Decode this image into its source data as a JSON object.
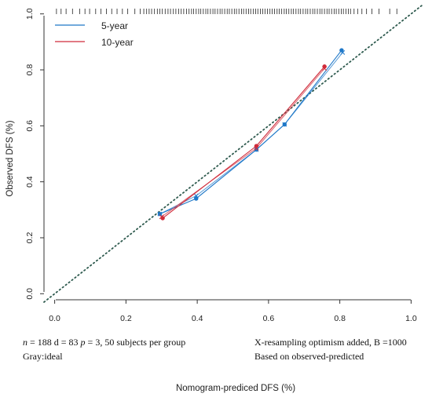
{
  "chart_data": {
    "type": "line",
    "xlabel": "Nomogram-prediced DFS (%)",
    "ylabel": "Observed DFS (%)",
    "xlim": [
      -0.03,
      1.03
    ],
    "ylim": [
      -0.03,
      1.03
    ],
    "xticks": [
      "0.0",
      "0.2",
      "0.4",
      "0.6",
      "0.8",
      "1.0"
    ],
    "yticks": [
      "0.0",
      "0.2",
      "0.4",
      "0.6",
      "0.8",
      "1.0"
    ],
    "ideal_line": {
      "x": [
        -0.03,
        1.03
      ],
      "y": [
        -0.03,
        1.03
      ],
      "color": "#2e5a4e",
      "style": "dotted"
    },
    "series": [
      {
        "name": "5-year",
        "color": "#1f78c8",
        "x": [
          0.295,
          0.397,
          0.566,
          0.645,
          0.805
        ],
        "y": [
          0.285,
          0.34,
          0.515,
          0.605,
          0.87
        ],
        "bias_corrected": [
          [
            0.295,
            0.285
          ],
          [
            0.397,
            0.35
          ],
          [
            0.566,
            0.515
          ],
          [
            0.645,
            0.605
          ],
          [
            0.808,
            0.862
          ]
        ]
      },
      {
        "name": "10-year",
        "color": "#d02b3a",
        "x": [
          0.303,
          0.566,
          0.757
        ],
        "y": [
          0.27,
          0.528,
          0.812
        ],
        "bias_corrected": [
          [
            0.3,
            0.275
          ],
          [
            0.566,
            0.52
          ],
          [
            0.757,
            0.805
          ]
        ]
      }
    ],
    "rug_x": [
      0.005,
      0.018,
      0.032,
      0.05,
      0.07,
      0.085,
      0.098,
      0.115,
      0.13,
      0.145,
      0.16,
      0.175,
      0.19,
      0.205,
      0.225,
      0.24,
      0.25,
      0.258,
      0.265,
      0.272,
      0.28,
      0.288,
      0.295,
      0.302,
      0.31,
      0.318,
      0.325,
      0.333,
      0.34,
      0.348,
      0.355,
      0.362,
      0.37,
      0.377,
      0.384,
      0.39,
      0.397,
      0.404,
      0.41,
      0.417,
      0.424,
      0.43,
      0.437,
      0.444,
      0.45,
      0.457,
      0.464,
      0.47,
      0.477,
      0.484,
      0.49,
      0.497,
      0.504,
      0.51,
      0.517,
      0.524,
      0.53,
      0.537,
      0.544,
      0.55,
      0.557,
      0.564,
      0.57,
      0.577,
      0.584,
      0.59,
      0.597,
      0.604,
      0.61,
      0.617,
      0.624,
      0.63,
      0.637,
      0.644,
      0.65,
      0.657,
      0.664,
      0.67,
      0.677,
      0.684,
      0.69,
      0.697,
      0.704,
      0.71,
      0.717,
      0.724,
      0.73,
      0.737,
      0.744,
      0.75,
      0.757,
      0.764,
      0.77,
      0.777,
      0.784,
      0.79,
      0.797,
      0.804,
      0.81,
      0.817,
      0.824,
      0.83,
      0.84,
      0.85,
      0.862,
      0.875,
      0.89,
      0.91,
      0.94,
      0.96
    ],
    "legend_position": "top-left",
    "annotations": {
      "left_line1_n": "n",
      "left_line1_rest": " = 188 d = 83 ",
      "left_line1_p": "p",
      "left_line1_tail": " = 3, 50 subjects per group",
      "left_line2": "Gray:ideal",
      "right_line1": "X-resampling optimism added, B =1000",
      "right_line2": "Based on observed-predicted"
    }
  }
}
